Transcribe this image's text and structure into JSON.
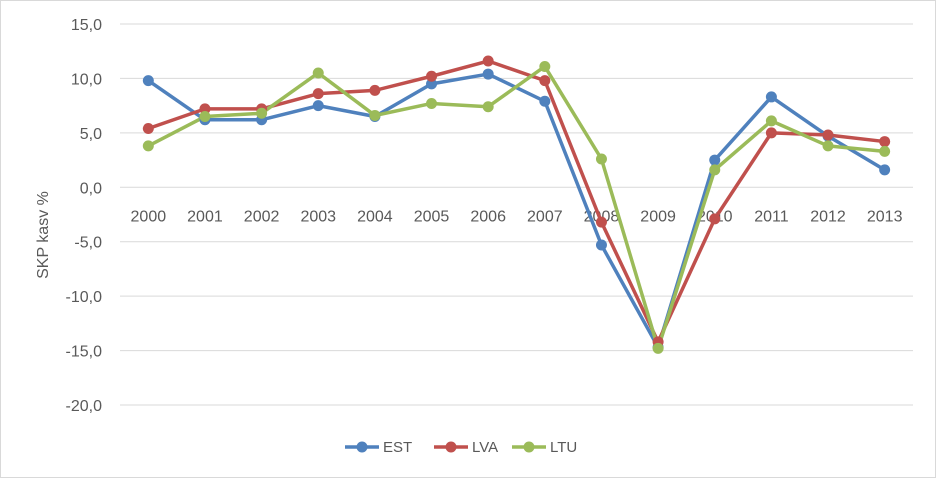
{
  "chart_data": {
    "type": "line",
    "title": "",
    "xlabel": "",
    "ylabel": "SKP kasv %",
    "ylim": [
      -20,
      15
    ],
    "ytick_step": 5,
    "yticks": [
      "15,0",
      "10,0",
      "5,0",
      "0,0",
      "-5,0",
      "-10,0",
      "-15,0",
      "-20,0"
    ],
    "grid": true,
    "legend_position": "bottom",
    "categories": [
      "2000",
      "2001",
      "2002",
      "2003",
      "2004",
      "2005",
      "2006",
      "2007",
      "2008",
      "2009",
      "2010",
      "2011",
      "2012",
      "2013"
    ],
    "series": [
      {
        "name": "EST",
        "color": "#4f81bd",
        "values": [
          9.8,
          6.2,
          6.2,
          7.5,
          6.5,
          9.5,
          10.4,
          7.9,
          -5.3,
          -14.7,
          2.5,
          8.3,
          4.7,
          1.6
        ]
      },
      {
        "name": "LVA",
        "color": "#c0504d",
        "values": [
          5.4,
          7.2,
          7.2,
          8.6,
          8.9,
          10.2,
          11.6,
          9.8,
          -3.2,
          -14.2,
          -2.9,
          5.0,
          4.8,
          4.2
        ]
      },
      {
        "name": "LTU",
        "color": "#9bbb59",
        "values": [
          3.8,
          6.5,
          6.8,
          10.5,
          6.6,
          7.7,
          7.4,
          11.1,
          2.6,
          -14.8,
          1.6,
          6.1,
          3.8,
          3.3
        ]
      }
    ]
  }
}
